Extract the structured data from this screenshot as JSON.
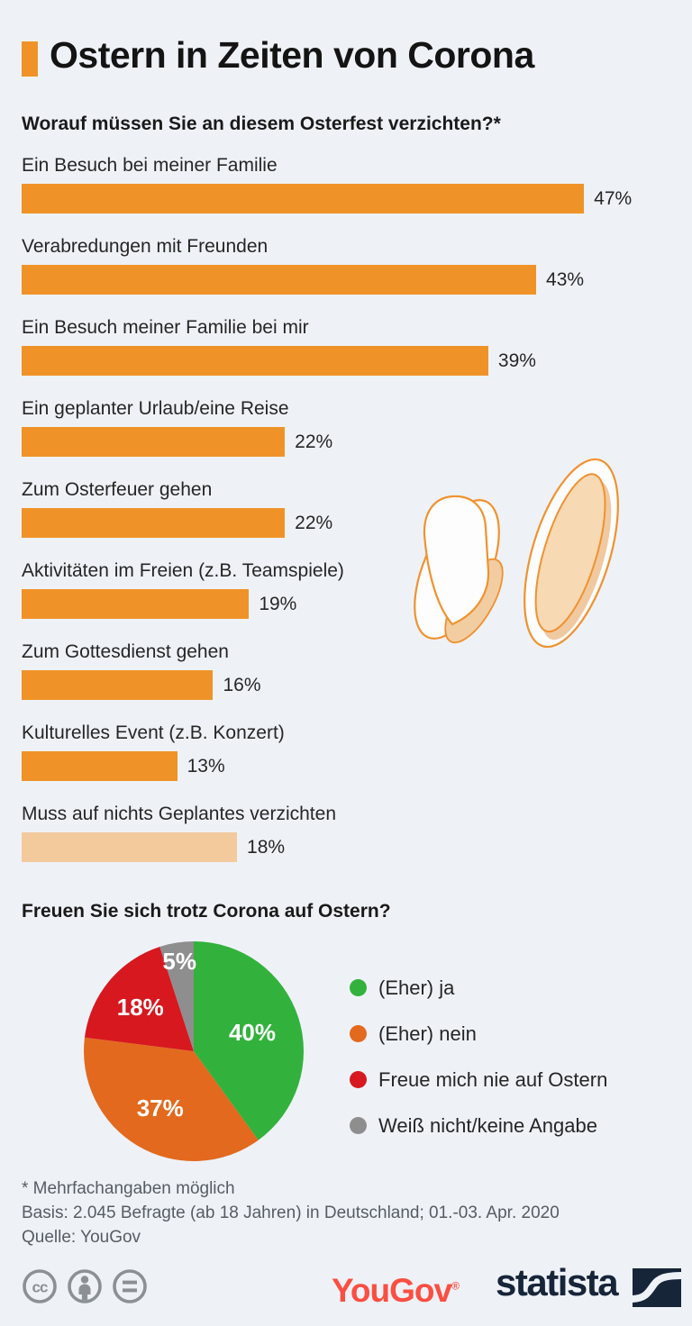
{
  "page": {
    "background_color": "#eef2f7",
    "accent_color": "#ef9329"
  },
  "header": {
    "title": "Ostern in Zeiten von Corona"
  },
  "chart_data": [
    {
      "type": "bar",
      "orientation": "horizontal",
      "title": "Worauf müssen Sie an diesem Osterfest verzichten?*",
      "categories": [
        "Ein Besuch bei meiner Familie",
        "Verabredungen mit Freunden",
        "Ein Besuch meiner Familie bei mir",
        "Ein geplanter Urlaub/eine Reise",
        "Zum Osterfeuer gehen",
        "Aktivitäten im Freien (z.B. Teamspiele)",
        "Zum Gottesdienst gehen",
        "Kulturelles Event (z.B. Konzert)",
        "Muss auf nichts Geplantes verzichten"
      ],
      "values": [
        47,
        43,
        39,
        22,
        22,
        19,
        16,
        13,
        18
      ],
      "value_labels": [
        "47%",
        "43%",
        "39%",
        "22%",
        "22%",
        "19%",
        "16%",
        "13%",
        "18%"
      ],
      "xlim": [
        0,
        50
      ],
      "grid": false,
      "bar_color": "#ef9329",
      "highlight_last_bar": true,
      "highlight_color": "#f3ca9c"
    },
    {
      "type": "pie",
      "title": "Freuen Sie sich trotz Corona auf Ostern?",
      "labels": [
        "(Eher) ja",
        "(Eher) nein",
        "Freue mich nie auf Ostern",
        "Weiß nicht/keine Angabe"
      ],
      "values": [
        40,
        37,
        18,
        5
      ],
      "value_labels": [
        "40%",
        "37%",
        "18%",
        "5%"
      ],
      "colors": [
        "#32b23c",
        "#e2691e",
        "#d7181f",
        "#8e8e8e"
      ],
      "start_angle_deg": 0,
      "direction": "clockwise",
      "legend_position": "right",
      "slice_label_color": "#ffffff"
    }
  ],
  "decoration": {
    "bunny_ears_icon": "bunny-ears",
    "outline_color": "#f0922f",
    "inner_fill": "#f7d9b4",
    "shadow_fill": "#f0c9a0",
    "white_fill": "#fdfdfe"
  },
  "footer": {
    "note": "* Mehrfachangaben möglich",
    "basis": "Basis: 2.045 Befragte (ab 18 Jahren) in Deutschland; 01.-03. Apr. 2020",
    "source": "Quelle: YouGov",
    "license_icons": [
      "cc-icon",
      "attribution-person-icon",
      "equals-icon"
    ],
    "license_icon_color": "#8b9094",
    "yougov_logo_text": "YouGov",
    "yougov_reg_mark": "®",
    "yougov_color": "#fa4f42",
    "statista_logo_text": "statista",
    "statista_color": "#172539"
  }
}
